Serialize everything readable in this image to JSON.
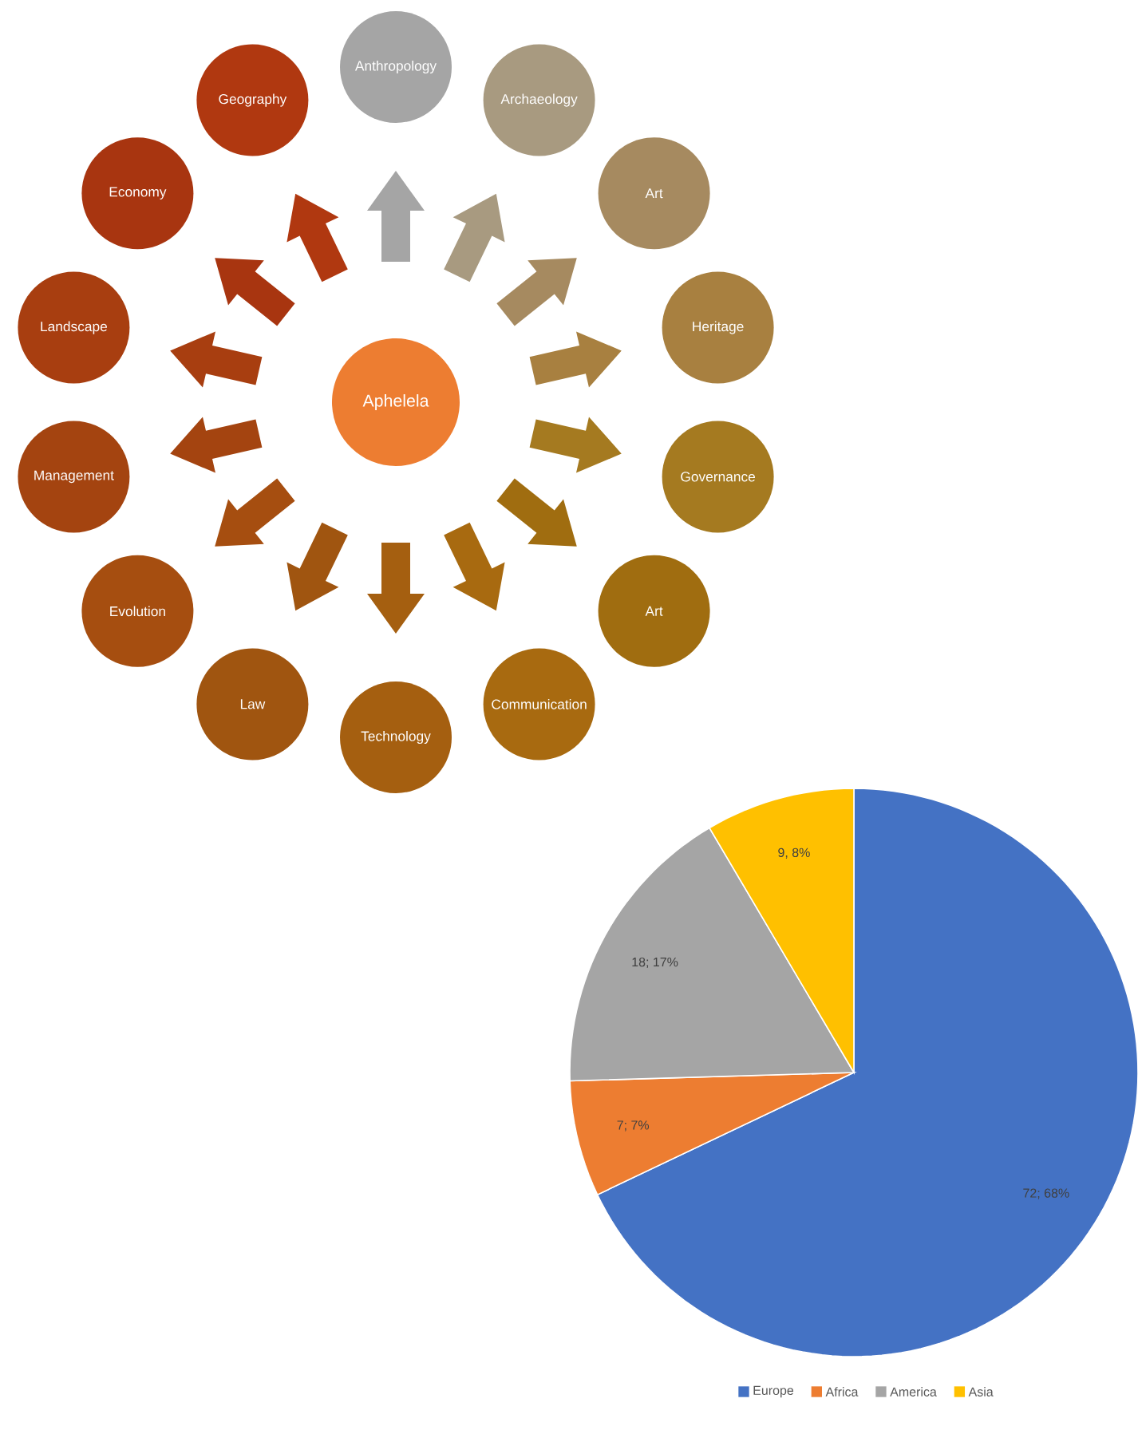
{
  "chart_data": [
    {
      "type": "other",
      "annotations": [
        "Aphelela",
        "Anthropology",
        "Archaeology",
        "Art",
        "Heritage",
        "Governance",
        "Art",
        "Communication",
        "Technology",
        "Law",
        "Evolution",
        "Management",
        "Landscape",
        "Economy",
        "Geography"
      ],
      "colors": [
        "#ed7d31",
        "#a5a5a5",
        "#a89a80",
        "#a68a60",
        "#a88040",
        "#a57a20",
        "#a06d10",
        "#a86a10",
        "#a55f10",
        "#a05510",
        "#a64e10",
        "#a44410",
        "#a83e10",
        "#a83510",
        "#b03810"
      ]
    },
    {
      "type": "pie",
      "categories": [
        "Europe",
        "Africa",
        "America",
        "Asia"
      ],
      "values": [
        72,
        7,
        18,
        9
      ],
      "colors": [
        "#4472c4",
        "#ed7d31",
        "#a5a5a5",
        "#ffc000"
      ],
      "value_labels": [
        "72; 68%",
        "7; 7%",
        "18; 17%",
        "9, 8%"
      ],
      "legend": "bottom"
    }
  ]
}
